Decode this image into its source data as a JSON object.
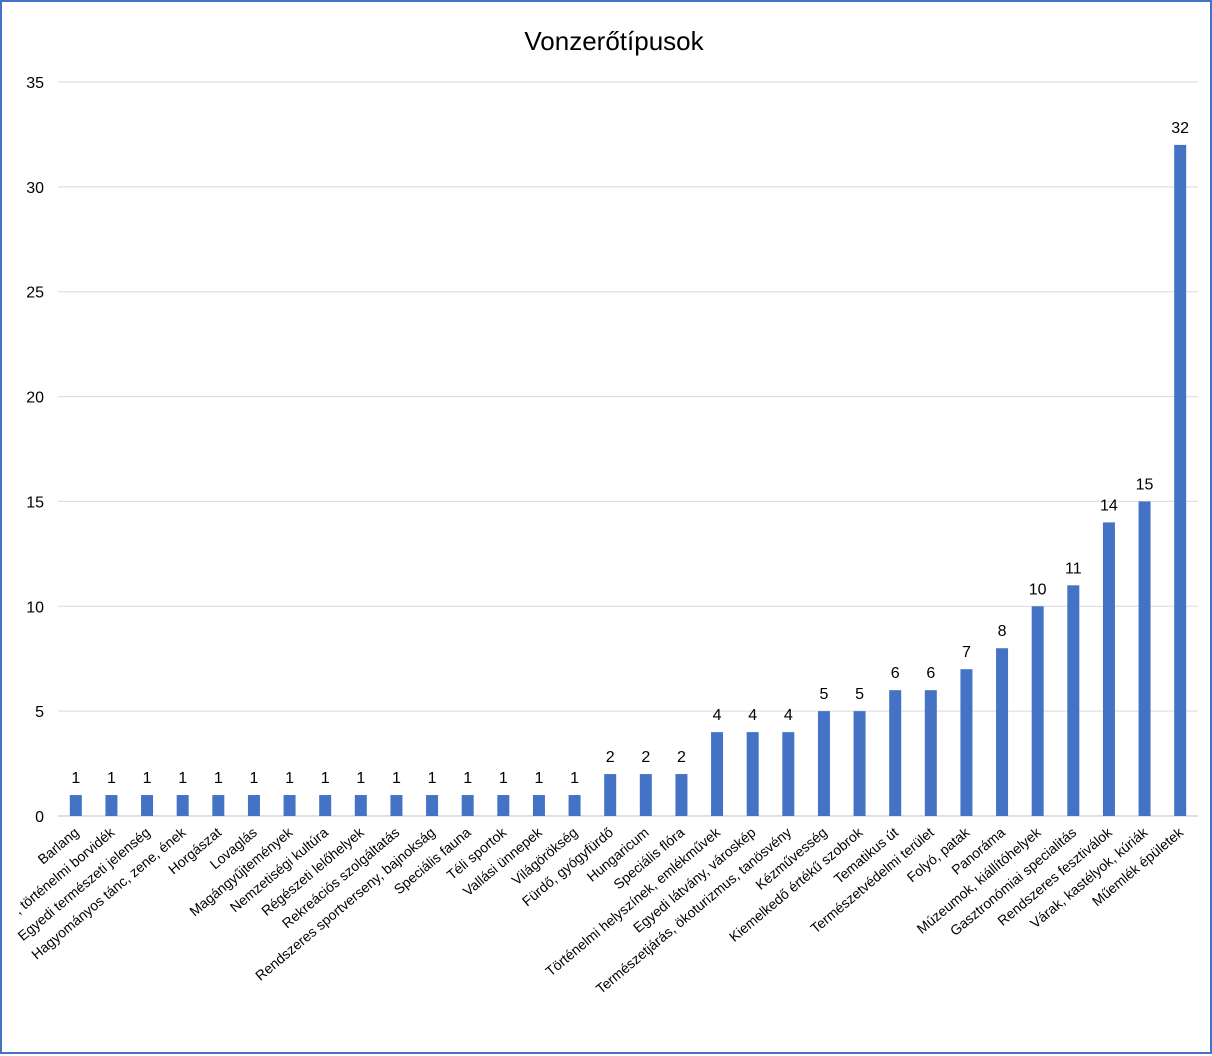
{
  "chart_data": {
    "type": "bar",
    "title": "Vonzerőtípusok",
    "xlabel": "",
    "ylabel": "",
    "ylim": [
      0,
      35
    ],
    "yticks": [
      0,
      5,
      10,
      15,
      20,
      25,
      30,
      35
    ],
    "grid": true,
    "legend": "none",
    "bar_color": "#4472c4",
    "categories": [
      "Barlang",
      ", történelmi borvidék",
      "Egyedi természeti jelenség",
      "Hagyományos tánc, zene, ének",
      "Horgászat",
      "Lovaglás",
      "Magángyűjtemények",
      "Nemzetiségi kultúra",
      "Régészeti lelőhelyek",
      "Rekreációs szolgáltatás",
      "Rendszeres sportverseny, bajnokság",
      "Speciális fauna",
      "Téli sportok",
      "Vallási ünnepek",
      "Világörökség",
      "Fürdő, gyógyfürdő",
      "Hungaricum",
      "Speciális flóra",
      "Történelmi helyszínek, emlékművek",
      "Egyedi látvány, városkép",
      "Természetjárás, ökoturizmus, tanösvény",
      "Kézművesség",
      "Kiemelkedő értékű szobrok",
      "Tematikus út",
      "Természetvédelmi terület",
      "Folyó, patak",
      "Panoráma",
      "Múzeumok, kiállítóhelyek",
      "Gasztronómiai specialitás",
      "Rendszeres fesztiválok",
      "Várak, kastélyok, kúriák",
      "Műemlék épületek"
    ],
    "values": [
      1,
      1,
      1,
      1,
      1,
      1,
      1,
      1,
      1,
      1,
      1,
      1,
      1,
      1,
      1,
      2,
      2,
      2,
      4,
      4,
      4,
      5,
      5,
      6,
      6,
      7,
      8,
      10,
      11,
      14,
      15,
      32
    ]
  }
}
